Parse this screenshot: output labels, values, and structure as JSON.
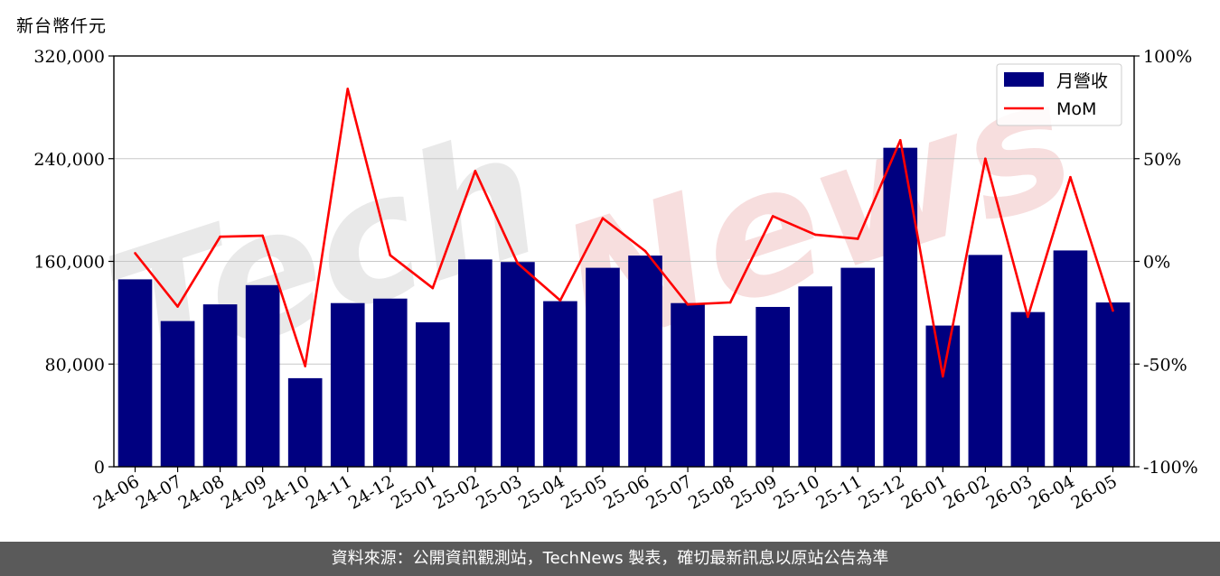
{
  "unit_label": "新台幣仟元",
  "footer_text": "資料來源：公開資訊觀測站，TechNews 製表，確切最新訊息以原站公告為準",
  "watermark": {
    "part1": "Tech",
    "part2": "News"
  },
  "colors": {
    "bar": "#000080",
    "line": "#ff0000",
    "grid": "#c8c8c8",
    "footer_bg": "#5a5a5a"
  },
  "chart_data": {
    "type": "bar",
    "title": "",
    "xlabel": "",
    "ylabel": "",
    "categories": [
      "24-06",
      "24-07",
      "24-08",
      "24-09",
      "24-10",
      "24-11",
      "24-12",
      "25-01",
      "25-02",
      "25-03",
      "25-04",
      "25-05",
      "25-06",
      "25-07",
      "25-08",
      "25-09",
      "25-10",
      "25-11",
      "25-12",
      "26-01",
      "26-02",
      "26-03",
      "26-04",
      "26-05"
    ],
    "ylim": [
      0,
      320000
    ],
    "yticks": [
      0,
      80000,
      160000,
      240000,
      320000
    ],
    "ytick_labels": [
      "0",
      "80,000",
      "160,000",
      "240,000",
      "320,000"
    ],
    "y2lim": [
      -100,
      100
    ],
    "y2ticks": [
      -100,
      -50,
      0,
      50,
      100
    ],
    "y2tick_labels": [
      "-100%",
      "-50%",
      "0%",
      "50%",
      "100%"
    ],
    "grid": true,
    "legend_position": "top-right",
    "series": [
      {
        "name": "月營收",
        "type": "bar",
        "axis": "left",
        "values": [
          146000,
          113500,
          126500,
          141500,
          69000,
          127500,
          131000,
          112500,
          161500,
          159500,
          129000,
          155000,
          164500,
          127500,
          102000,
          124500,
          140500,
          155000,
          248500,
          110000,
          165000,
          120500,
          168500,
          128000
        ]
      },
      {
        "name": "MoM",
        "type": "line",
        "axis": "right",
        "values": [
          4,
          -22,
          12,
          12.5,
          -51,
          84,
          3,
          -13,
          44,
          -1,
          -19,
          21,
          5,
          -21,
          -20,
          22,
          13,
          11,
          59,
          -56,
          50,
          -27,
          41,
          -24
        ]
      }
    ]
  }
}
